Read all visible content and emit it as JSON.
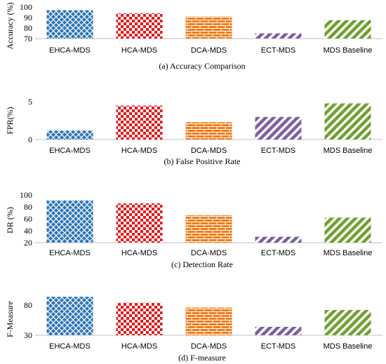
{
  "categories": [
    "EHCA-MDS",
    "HCA-MDS",
    "DCA-MDS",
    "ECT-MDS",
    "MDS Baseline"
  ],
  "colors": {
    "ehca": "#2e75b6",
    "hca": "#e31a1c",
    "dca": "#f07c1a",
    "ect": "#7d5fa2",
    "baseline": "#70a030"
  },
  "patterns": [
    "crosshatch",
    "checkerboard",
    "brick",
    "diagonal-stripes",
    "diagonal-stripes"
  ],
  "chart_data": [
    {
      "type": "bar",
      "caption": "(a) Accuracy Comparison",
      "ylabel": "Accuracy (%)",
      "ylim": [
        70,
        100
      ],
      "yticks": [
        70,
        80,
        90,
        100
      ],
      "categories": [
        "EHCA-MDS",
        "HCA-MDS",
        "DCA-MDS",
        "ECT-MDS",
        "MDS Baseline"
      ],
      "values": [
        97,
        94,
        91,
        75,
        87.5
      ]
    },
    {
      "type": "bar",
      "caption": "(b) False Positive Rate",
      "ylabel": "FPR(%)",
      "ylim": [
        0,
        5.3
      ],
      "yticks": [
        0,
        5
      ],
      "categories": [
        "EHCA-MDS",
        "HCA-MDS",
        "DCA-MDS",
        "ECT-MDS",
        "MDS Baseline"
      ],
      "values": [
        1.2,
        4.5,
        2.3,
        3.0,
        4.8
      ]
    },
    {
      "type": "bar",
      "caption": "(c) Detection Rate",
      "ylabel": "DR (%)",
      "ylim": [
        20,
        100
      ],
      "yticks": [
        20,
        40,
        60,
        80,
        100
      ],
      "categories": [
        "EHCA-MDS",
        "HCA-MDS",
        "DCA-MDS",
        "ECT-MDS",
        "MDS Baseline"
      ],
      "values": [
        91,
        86,
        66,
        30,
        62
      ]
    },
    {
      "type": "bar",
      "caption": "(d) F-measure",
      "ylabel": "F-Measure",
      "ylim": [
        30,
        100
      ],
      "yticks": [
        30,
        80
      ],
      "categories": [
        "EHCA-MDS",
        "HCA-MDS",
        "DCA-MDS",
        "ECT-MDS",
        "MDS Baseline"
      ],
      "values": [
        94,
        84,
        76,
        44,
        72
      ]
    }
  ]
}
